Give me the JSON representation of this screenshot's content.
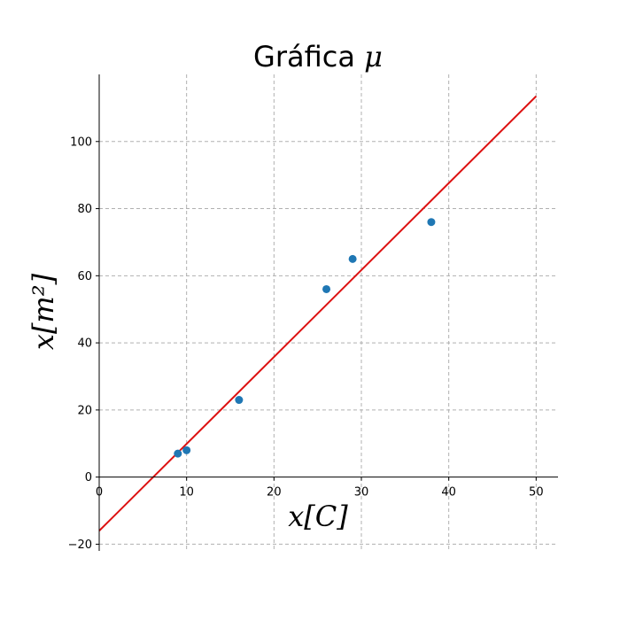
{
  "chart_data": {
    "type": "scatter",
    "title": "Gráfica μ",
    "xlabel": "x[C]",
    "ylabel": "x[m²]",
    "xlim": [
      0,
      52.5
    ],
    "ylim": [
      -22,
      120
    ],
    "x_ticks": [
      0,
      10,
      20,
      30,
      40,
      50
    ],
    "y_ticks": [
      -20,
      0,
      20,
      40,
      60,
      80,
      100
    ],
    "grid": true,
    "series": [
      {
        "type": "scatter",
        "color": "#1f77b4",
        "x": [
          9,
          10,
          16,
          26,
          29,
          38
        ],
        "y": [
          7,
          8,
          23,
          56,
          65,
          76
        ]
      },
      {
        "type": "line",
        "color": "#dd1111",
        "x": [
          0,
          50
        ],
        "y": [
          -16,
          113.5
        ]
      }
    ]
  }
}
